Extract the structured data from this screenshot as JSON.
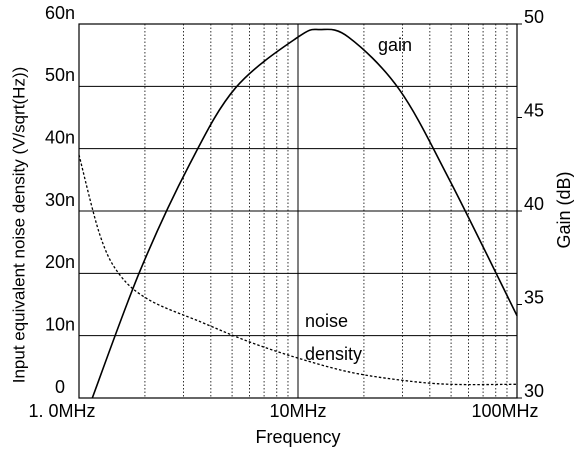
{
  "chart_data": {
    "type": "line",
    "x_label": "Frequency",
    "y_label": "Input equivalent noise density (V/sqrt(Hz))",
    "y2_label": "Gain (dB)",
    "x_scale": "log",
    "grid": true,
    "xlim": [
      1000000,
      100000000
    ],
    "xticks": [
      {
        "value": 1000000,
        "label": "1. 0MHz"
      },
      {
        "value": 10000000,
        "label": "10MHz"
      },
      {
        "value": 100000000,
        "label": "100MHz"
      }
    ],
    "x_minor_ticks": [
      2000000,
      3000000,
      4000000,
      5000000,
      6000000,
      7000000,
      8000000,
      9000000,
      20000000,
      30000000,
      40000000,
      50000000,
      60000000,
      70000000,
      80000000,
      90000000
    ],
    "ylim": [
      0,
      6e-08
    ],
    "yticks": [
      0,
      {
        "value": 1e-08,
        "label": "10n"
      },
      {
        "value": 2e-08,
        "label": "20n"
      },
      {
        "value": 3e-08,
        "label": "30n"
      },
      {
        "value": 4e-08,
        "label": "40n"
      },
      {
        "value": 5e-08,
        "label": "50n"
      },
      {
        "value": 6e-08,
        "label": "60n"
      }
    ],
    "y2lim": [
      30,
      50
    ],
    "y2ticks": [
      30,
      35,
      40,
      45,
      50
    ],
    "series": [
      {
        "name": "gain",
        "color": "#000000",
        "dash": "solid",
        "axis": "y2",
        "x": [
          1150000,
          1900000,
          3200000,
          5200000,
          10000000,
          12600000,
          17000000,
          29000000,
          49000000,
          100000000
        ],
        "values": [
          30,
          36.8,
          42.5,
          46.6,
          49.3,
          49.7,
          49.3,
          46.5,
          41.7,
          34.4
        ]
      },
      {
        "name": "noise density",
        "color": "#000000",
        "dash": "dotted",
        "axis": "y",
        "x": [
          1000000,
          1250000,
          1540000,
          2100000,
          3600000,
          6000000,
          10000000,
          17000000,
          29000000,
          49000000,
          100000000
        ],
        "values": [
          3.9e-08,
          2.6e-08,
          1.97e-08,
          1.57e-08,
          1.22e-08,
          9e-09,
          6.4e-09,
          4.2e-09,
          2.9e-09,
          2.2e-09,
          2.2e-09
        ]
      }
    ],
    "annotations": [
      "gain",
      "noise",
      "density"
    ]
  }
}
